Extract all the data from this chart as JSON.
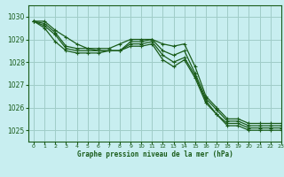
{
  "title": "Graphe pression niveau de la mer (hPa)",
  "background_color": "#c8eef0",
  "grid_color": "#a0ccc8",
  "line_color": "#1a5c1a",
  "xlim": [
    -0.5,
    23
  ],
  "ylim": [
    1024.5,
    1030.5
  ],
  "yticks": [
    1025,
    1026,
    1027,
    1028,
    1029,
    1030
  ],
  "xticks": [
    0,
    1,
    2,
    3,
    4,
    5,
    6,
    7,
    8,
    9,
    10,
    11,
    12,
    13,
    14,
    15,
    16,
    17,
    18,
    19,
    20,
    21,
    22,
    23
  ],
  "series": [
    [
      1029.8,
      1029.8,
      1029.4,
      1029.1,
      1028.8,
      1028.6,
      1028.6,
      1028.6,
      1028.8,
      1029.0,
      1029.0,
      1029.0,
      1028.8,
      1028.7,
      1028.8,
      1027.8,
      1026.5,
      1026.0,
      1025.5,
      1025.5,
      1025.3,
      1025.3,
      1025.3,
      1025.3
    ],
    [
      1029.8,
      1029.7,
      1029.3,
      1028.7,
      1028.6,
      1028.6,
      1028.5,
      1028.5,
      1028.5,
      1028.9,
      1028.9,
      1029.0,
      1028.5,
      1028.3,
      1028.5,
      1027.5,
      1026.4,
      1025.9,
      1025.4,
      1025.4,
      1025.2,
      1025.2,
      1025.2,
      1025.2
    ],
    [
      1029.8,
      1029.6,
      1029.2,
      1028.6,
      1028.5,
      1028.5,
      1028.5,
      1028.5,
      1028.5,
      1028.8,
      1028.8,
      1028.9,
      1028.3,
      1028.0,
      1028.2,
      1027.4,
      1026.3,
      1025.7,
      1025.3,
      1025.3,
      1025.1,
      1025.1,
      1025.1,
      1025.1
    ],
    [
      1029.8,
      1029.5,
      1028.9,
      1028.5,
      1028.4,
      1028.4,
      1028.4,
      1028.5,
      1028.5,
      1028.7,
      1028.7,
      1028.8,
      1028.1,
      1027.8,
      1028.1,
      1027.3,
      1026.2,
      1025.7,
      1025.2,
      1025.2,
      1025.0,
      1025.0,
      1025.0,
      1025.0
    ]
  ]
}
